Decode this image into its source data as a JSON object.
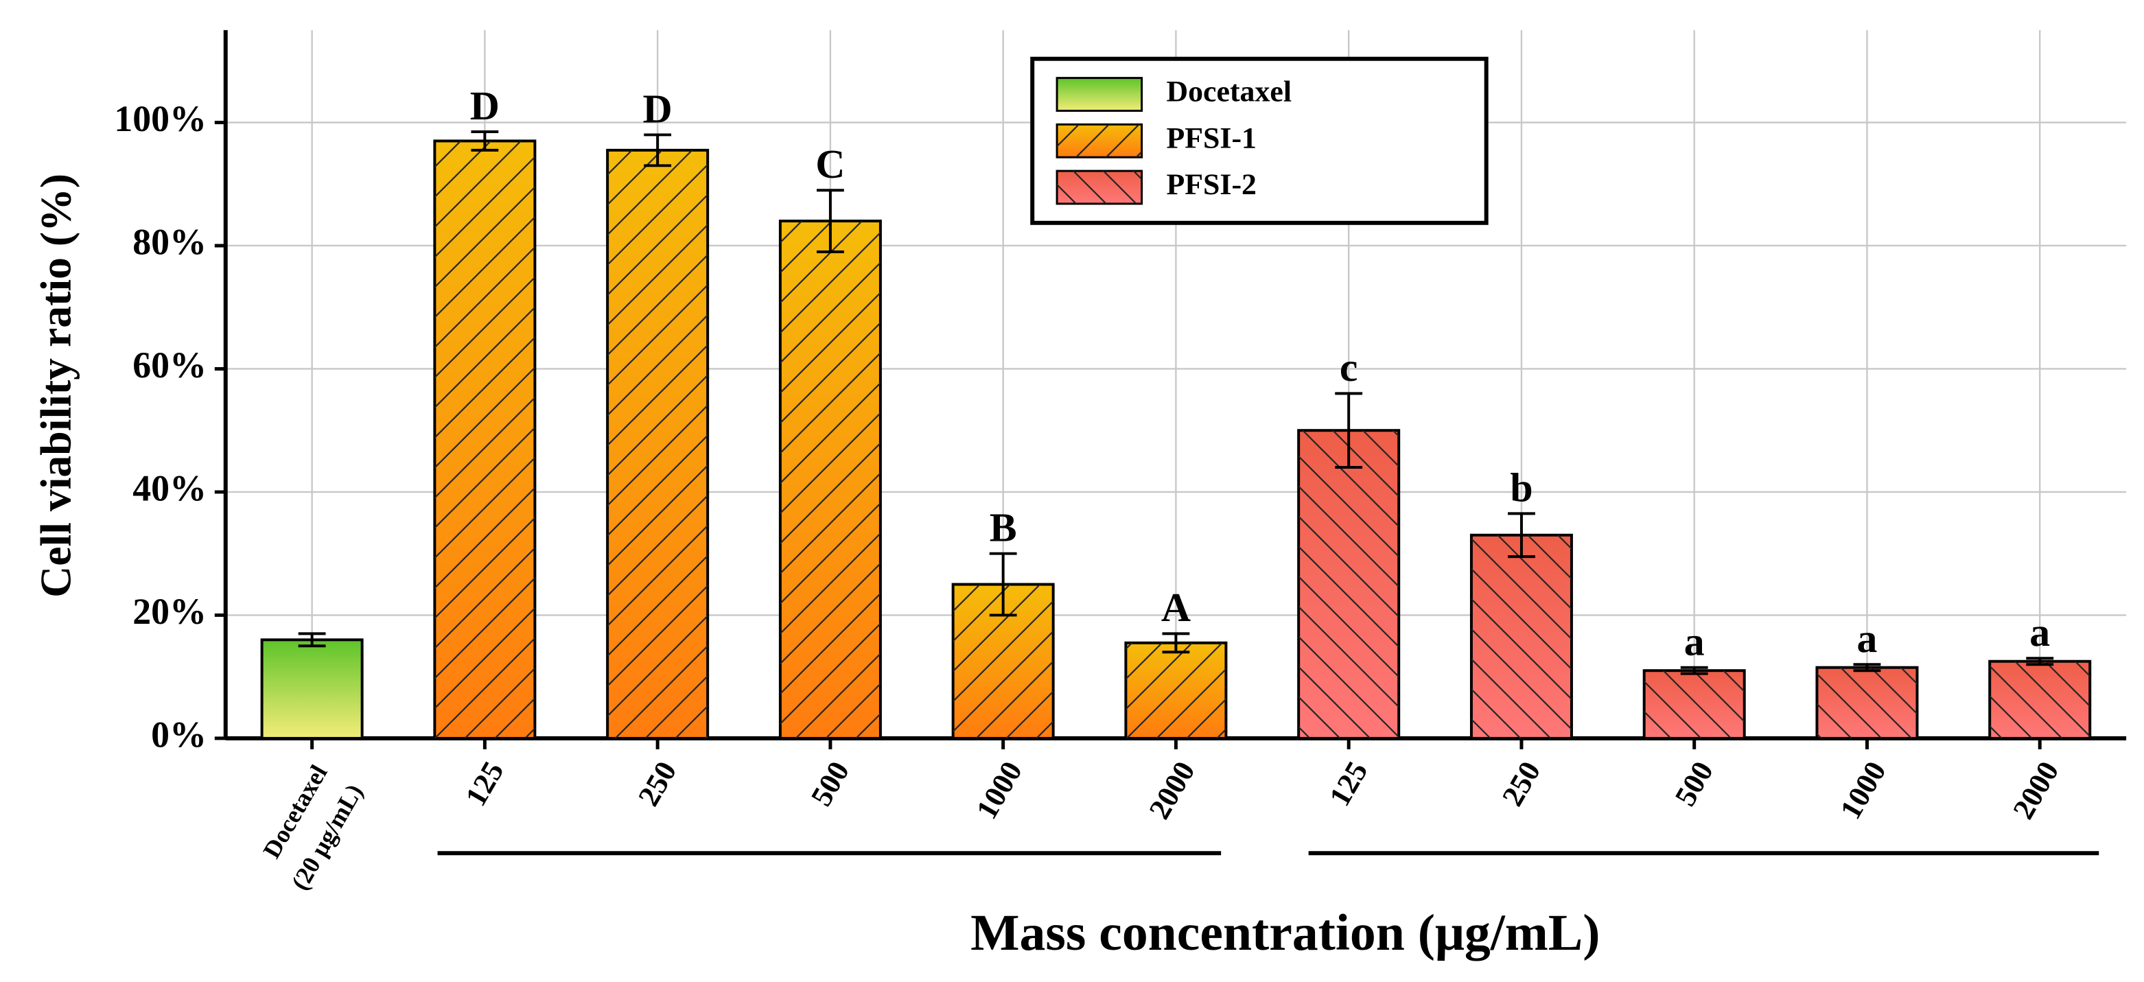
{
  "chart_data": {
    "type": "bar",
    "y_label": "Cell viability ratio (%)",
    "x_label": "Mass concentration (μg/mL)",
    "categories": [
      [
        "Docetaxel",
        "(20 μg/mL)"
      ],
      "125",
      "250",
      "500",
      "1000",
      "2000",
      "125",
      "250",
      "500",
      "1000",
      "2000"
    ],
    "series": [
      {
        "name": "Docetaxel",
        "color": [
          "#5ec42a",
          "#f4ec78"
        ],
        "hatch": null,
        "values": [
          16,
          null,
          null,
          null,
          null,
          null,
          null,
          null,
          null,
          null,
          null
        ],
        "errors": [
          1,
          null,
          null,
          null,
          null,
          null,
          null,
          null,
          null,
          null,
          null
        ],
        "letters": [
          null,
          null,
          null,
          null,
          null,
          null,
          null,
          null,
          null,
          null,
          null
        ]
      },
      {
        "name": "PFSI-1",
        "color": [
          "#f5bc0a",
          "#ff7c10"
        ],
        "hatch": "/",
        "values": [
          null,
          97,
          95.5,
          84,
          25,
          15.5,
          null,
          null,
          null,
          null,
          null
        ],
        "errors": [
          null,
          1.5,
          2.5,
          5,
          5,
          1.5,
          null,
          null,
          null,
          null,
          null
        ],
        "letters": [
          null,
          "D",
          "D",
          "C",
          "B",
          "A",
          null,
          null,
          null,
          null,
          null
        ]
      },
      {
        "name": "PFSI-2",
        "color": [
          "#ee5e48",
          "#ff7878"
        ],
        "hatch": "\\",
        "values": [
          null,
          null,
          null,
          null,
          null,
          null,
          50,
          33,
          11,
          11.5,
          12.5
        ],
        "errors": [
          null,
          null,
          null,
          null,
          null,
          null,
          6,
          3.5,
          0.5,
          0.5,
          0.5
        ],
        "letters": [
          null,
          null,
          null,
          null,
          null,
          null,
          "c",
          "b",
          "a",
          "a",
          "a"
        ]
      }
    ],
    "ylim": [
      0,
      115
    ],
    "yticks": [
      {
        "value": 0,
        "label": "0%"
      },
      {
        "value": 20,
        "label": "20%"
      },
      {
        "value": 40,
        "label": "40%"
      },
      {
        "value": 60,
        "label": "60%"
      },
      {
        "value": 80,
        "label": "80%"
      },
      {
        "value": 100,
        "label": "100%"
      }
    ],
    "grid": true,
    "legend": "top"
  }
}
